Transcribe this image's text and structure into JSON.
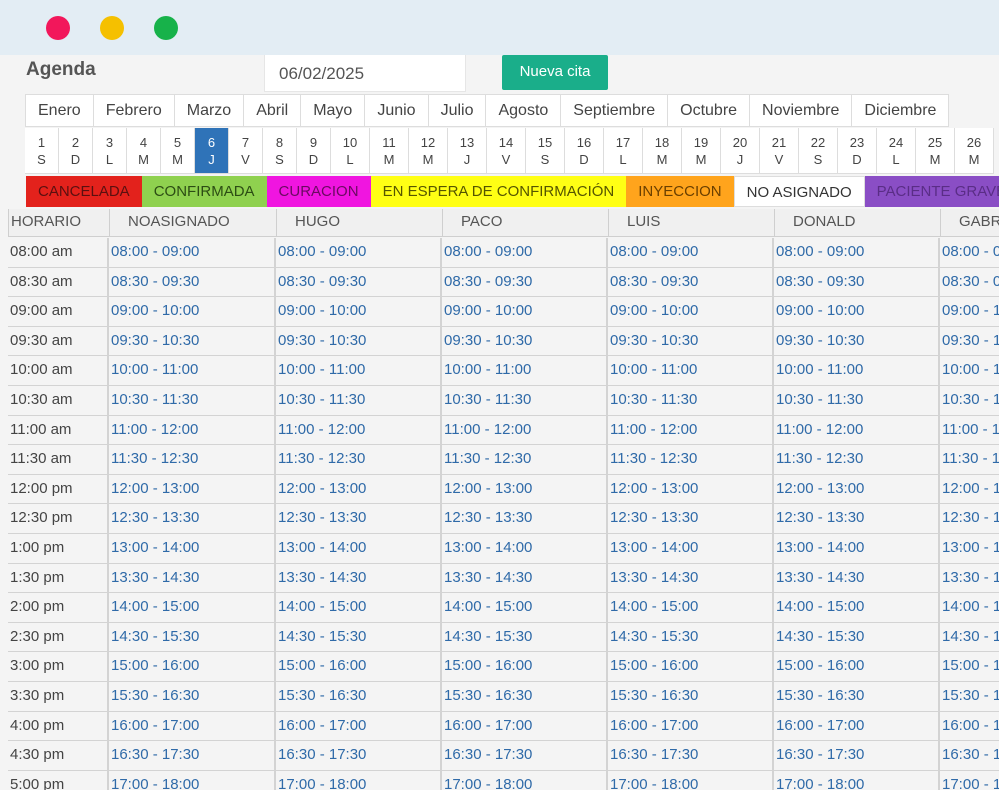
{
  "window": {
    "controls": [
      "close",
      "minimize",
      "maximize"
    ]
  },
  "header": {
    "title": "Agenda",
    "date_value": "06/02/2025",
    "new_button": "Nueva cita"
  },
  "months": [
    "Enero",
    "Febrero",
    "Marzo",
    "Abril",
    "Mayo",
    "Junio",
    "Julio",
    "Agosto",
    "Septiembre",
    "Octubre",
    "Noviembre",
    "Diciembre"
  ],
  "days": [
    {
      "n": "1",
      "l": "S"
    },
    {
      "n": "2",
      "l": "D"
    },
    {
      "n": "3",
      "l": "L"
    },
    {
      "n": "4",
      "l": "M"
    },
    {
      "n": "5",
      "l": "M"
    },
    {
      "n": "6",
      "l": "J",
      "active": true
    },
    {
      "n": "7",
      "l": "V"
    },
    {
      "n": "8",
      "l": "S"
    },
    {
      "n": "9",
      "l": "D"
    },
    {
      "n": "10",
      "l": "L"
    },
    {
      "n": "11",
      "l": "M"
    },
    {
      "n": "12",
      "l": "M"
    },
    {
      "n": "13",
      "l": "J"
    },
    {
      "n": "14",
      "l": "V"
    },
    {
      "n": "15",
      "l": "S"
    },
    {
      "n": "16",
      "l": "D"
    },
    {
      "n": "17",
      "l": "L"
    },
    {
      "n": "18",
      "l": "M"
    },
    {
      "n": "19",
      "l": "M"
    },
    {
      "n": "20",
      "l": "J"
    },
    {
      "n": "21",
      "l": "V"
    },
    {
      "n": "22",
      "l": "S"
    },
    {
      "n": "23",
      "l": "D"
    },
    {
      "n": "24",
      "l": "L"
    },
    {
      "n": "25",
      "l": "M"
    },
    {
      "n": "26",
      "l": "M"
    }
  ],
  "legend": [
    {
      "label": "CANCELADA",
      "bg": "#e3221c",
      "fg": "#5a1010"
    },
    {
      "label": "CONFIRMADA",
      "bg": "#8fd14f",
      "fg": "#2c4d14"
    },
    {
      "label": "CURACION",
      "bg": "#f015e0",
      "fg": "#6a0a60"
    },
    {
      "label": "EN ESPERA DE CONFIRMACIÓN",
      "bg": "#ffff14",
      "fg": "#555500"
    },
    {
      "label": "INYECCION",
      "bg": "#ffa41c",
      "fg": "#6a3f00"
    },
    {
      "label": "NO ASIGNADO",
      "bg": "#ffffff",
      "fg": "#333333"
    },
    {
      "label": "PACIENTE GRAVE",
      "bg": "#8a4ec5",
      "fg": "#5a2d86"
    }
  ],
  "table": {
    "headers": [
      "HORARIO",
      "NOASIGNADO",
      "HUGO",
      "PACO",
      "LUIS",
      "DONALD",
      "GABR"
    ],
    "times": [
      "08:00 am",
      "08:30 am",
      "09:00 am",
      "09:30 am",
      "10:00 am",
      "10:30 am",
      "11:00 am",
      "11:30 am",
      "12:00 pm",
      "12:30 pm",
      "1:00 pm",
      "1:30 pm",
      "2:00 pm",
      "2:30 pm",
      "3:00 pm",
      "3:30 pm",
      "4:00 pm",
      "4:30 pm",
      "5:00 pm"
    ],
    "slots": [
      "08:00 - 09:00",
      "08:30 - 09:30",
      "09:00 - 10:00",
      "09:30 - 10:30",
      "10:00 - 11:00",
      "10:30 - 11:30",
      "11:00 - 12:00",
      "11:30 - 12:30",
      "12:00 - 13:00",
      "12:30 - 13:30",
      "13:00 - 14:00",
      "13:30 - 14:30",
      "14:00 - 15:00",
      "14:30 - 15:30",
      "15:00 - 16:00",
      "15:30 - 16:30",
      "16:00 - 17:00",
      "16:30 - 17:30",
      "17:00 - 18:00"
    ]
  }
}
